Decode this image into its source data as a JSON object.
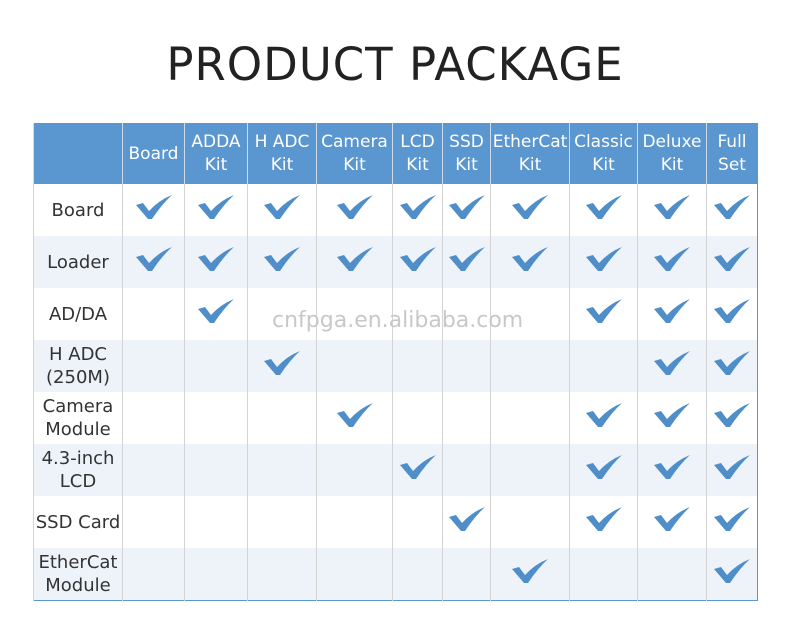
{
  "title": "PRODUCT PACKAGE",
  "watermark": "cnfpga.en.alibaba.com",
  "colors": {
    "header": "#5a96cf",
    "check": "#4f8ec9",
    "alt_row": "#eef3f9"
  },
  "columns": [
    "",
    "Board",
    "ADDA Kit",
    "H ADC Kit",
    "Camera Kit",
    "LCD Kit",
    "SSD Kit",
    "EtherCat Kit",
    "Classic Kit",
    "Deluxe Kit",
    "Full Set"
  ],
  "rows": [
    {
      "label": "Board",
      "checks": [
        true,
        true,
        true,
        true,
        true,
        true,
        true,
        true,
        true,
        true
      ]
    },
    {
      "label": "Loader",
      "checks": [
        true,
        true,
        true,
        true,
        true,
        true,
        true,
        true,
        true,
        true
      ]
    },
    {
      "label": "AD/DA",
      "checks": [
        false,
        true,
        false,
        false,
        false,
        false,
        false,
        true,
        true,
        true
      ]
    },
    {
      "label": "H ADC (250M)",
      "checks": [
        false,
        false,
        true,
        false,
        false,
        false,
        false,
        false,
        true,
        true
      ]
    },
    {
      "label": "Camera Module",
      "checks": [
        false,
        false,
        false,
        true,
        false,
        false,
        false,
        true,
        true,
        true
      ]
    },
    {
      "label": "4.3-inch LCD",
      "checks": [
        false,
        false,
        false,
        false,
        true,
        false,
        false,
        true,
        true,
        true
      ]
    },
    {
      "label": "SSD Card",
      "checks": [
        false,
        false,
        false,
        false,
        false,
        true,
        false,
        true,
        true,
        true
      ]
    },
    {
      "label": "EtherCat Module",
      "checks": [
        false,
        false,
        false,
        false,
        false,
        false,
        true,
        false,
        false,
        true
      ]
    }
  ]
}
